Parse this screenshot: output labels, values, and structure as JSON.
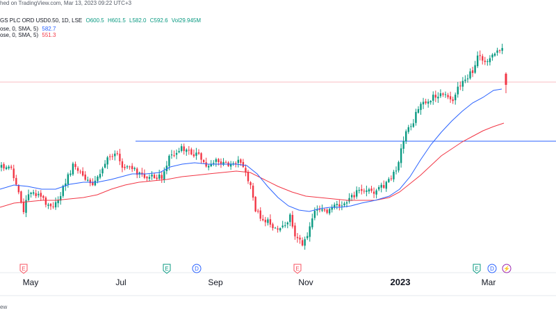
{
  "header": {
    "published": "hed on TradingView.com, Mar 13, 2023 09:22 UTC+3",
    "symbol": "GS PLC ORD USD0.50, 1D, LSE",
    "ohlc": {
      "o": "O600.5",
      "h": "H601.5",
      "l": "L582.0",
      "c": "C592.6",
      "vol": "Vol29.945M"
    },
    "ma1": {
      "label": "ose, 0, SMA, 5)",
      "value": "582.7"
    },
    "ma2": {
      "label": "ose, 0, SMA, 5)",
      "value": "551.3"
    }
  },
  "footer": {
    "text": "ew"
  },
  "colors": {
    "up": "#089981",
    "down": "#f23645",
    "ma1": "#2962ff",
    "ma2": "#f23645",
    "hline": "#2962ff"
  },
  "chart_data": {
    "type": "candlestick",
    "x_ticks": [
      "May",
      "Jul",
      "Sep",
      "Nov",
      "2023",
      "Mar"
    ],
    "events": [
      {
        "label": "E",
        "type": "earnings",
        "after_tick": "May"
      },
      {
        "label": "E",
        "type": "earnings",
        "after_tick": "Jul"
      },
      {
        "label": "D",
        "type": "dividend",
        "after_tick": "Jul"
      },
      {
        "label": "E",
        "type": "earnings",
        "after_tick": "Sep"
      },
      {
        "label": "E",
        "type": "earnings",
        "after_tick": "2023"
      },
      {
        "label": "D",
        "type": "dividend",
        "after_tick": "2023"
      },
      {
        "label": "⚡",
        "type": "split",
        "after_tick": "2023"
      }
    ],
    "last": {
      "open": 600.5,
      "high": 601.5,
      "low": 582.0,
      "close": 592.6,
      "volume": "29.945M"
    },
    "sma1": 582.7,
    "sma2": 551.3
  }
}
